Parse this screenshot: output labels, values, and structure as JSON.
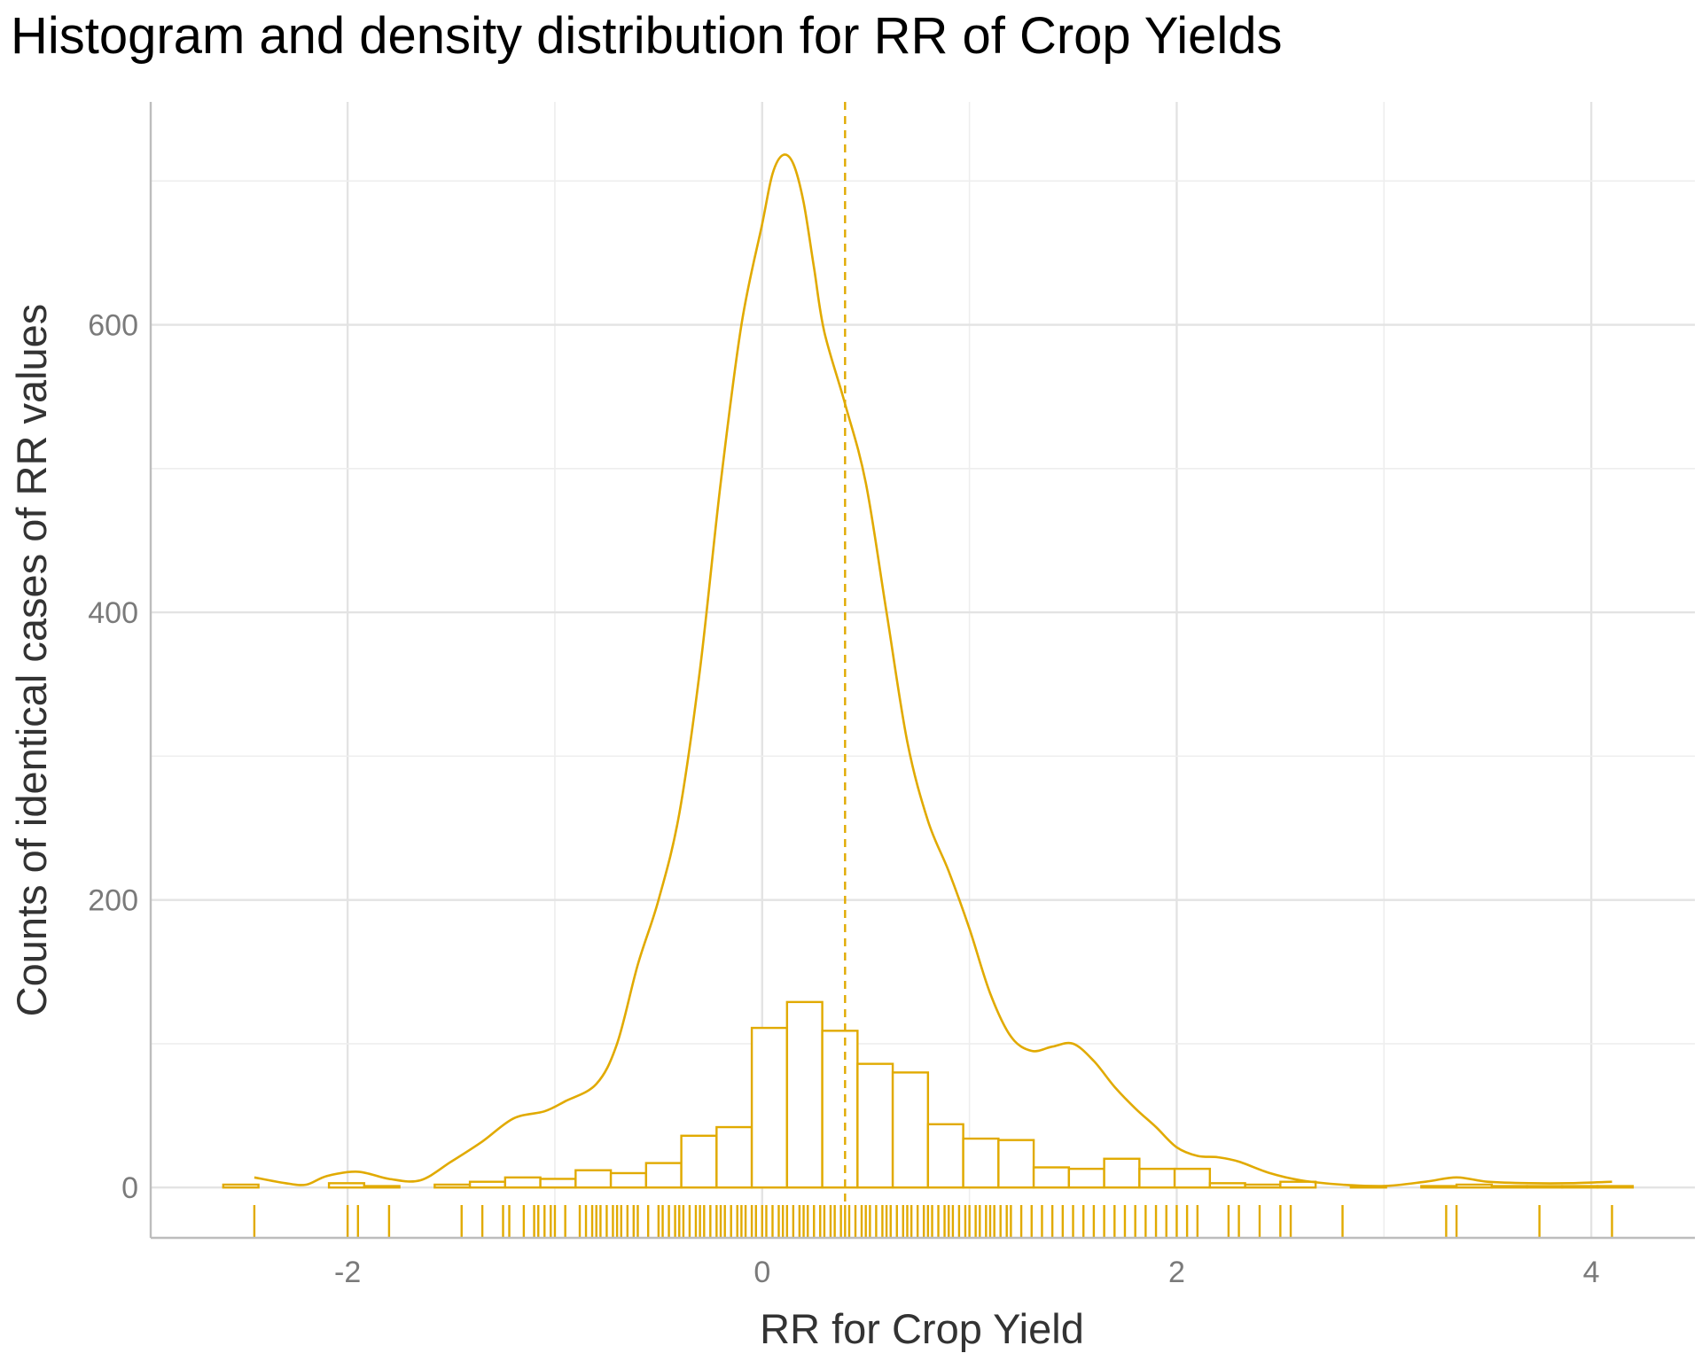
{
  "chart_data": {
    "type": "histogram",
    "title": "Histogram and density distribution for RR of Crop Yields",
    "xlabel": "RR for Crop Yield",
    "ylabel": "Counts of identical cases of RR values",
    "xlim": [
      -2.95,
      4.5
    ],
    "ylim": [
      -35,
      755
    ],
    "x_ticks": [
      -2,
      0,
      2,
      4
    ],
    "x_tick_labels": [
      "-2",
      "0",
      "2",
      "4"
    ],
    "y_ticks": [
      0,
      200,
      400,
      600
    ],
    "y_tick_labels": [
      "0",
      "200",
      "400",
      "600"
    ],
    "grid": true,
    "accent_color": "#E1AA00",
    "histogram": {
      "bins": [
        {
          "x0": -2.6,
          "x1": -2.43,
          "count": 2
        },
        {
          "x0": -2.43,
          "x1": -2.26,
          "count": 0
        },
        {
          "x0": -2.26,
          "x1": -2.09,
          "count": 0
        },
        {
          "x0": -2.09,
          "x1": -1.92,
          "count": 3
        },
        {
          "x0": -1.92,
          "x1": -1.75,
          "count": 1
        },
        {
          "x0": -1.75,
          "x1": -1.58,
          "count": 0
        },
        {
          "x0": -1.58,
          "x1": -1.41,
          "count": 2
        },
        {
          "x0": -1.41,
          "x1": -1.24,
          "count": 4
        },
        {
          "x0": -1.24,
          "x1": -1.07,
          "count": 7
        },
        {
          "x0": -1.07,
          "x1": -0.9,
          "count": 6
        },
        {
          "x0": -0.9,
          "x1": -0.73,
          "count": 12
        },
        {
          "x0": -0.73,
          "x1": -0.56,
          "count": 10
        },
        {
          "x0": -0.56,
          "x1": -0.39,
          "count": 17
        },
        {
          "x0": -0.39,
          "x1": -0.22,
          "count": 36
        },
        {
          "x0": -0.22,
          "x1": -0.05,
          "count": 42
        },
        {
          "x0": -0.05,
          "x1": 0.12,
          "count": 111
        },
        {
          "x0": 0.12,
          "x1": 0.29,
          "count": 129
        },
        {
          "x0": 0.29,
          "x1": 0.46,
          "count": 109
        },
        {
          "x0": 0.46,
          "x1": 0.63,
          "count": 86
        },
        {
          "x0": 0.63,
          "x1": 0.8,
          "count": 80
        },
        {
          "x0": 0.8,
          "x1": 0.97,
          "count": 44
        },
        {
          "x0": 0.97,
          "x1": 1.14,
          "count": 34
        },
        {
          "x0": 1.14,
          "x1": 1.31,
          "count": 33
        },
        {
          "x0": 1.31,
          "x1": 1.48,
          "count": 14
        },
        {
          "x0": 1.48,
          "x1": 1.65,
          "count": 13
        },
        {
          "x0": 1.65,
          "x1": 1.82,
          "count": 20
        },
        {
          "x0": 1.82,
          "x1": 1.99,
          "count": 13
        },
        {
          "x0": 1.99,
          "x1": 2.16,
          "count": 13
        },
        {
          "x0": 2.16,
          "x1": 2.33,
          "count": 3
        },
        {
          "x0": 2.33,
          "x1": 2.5,
          "count": 2
        },
        {
          "x0": 2.5,
          "x1": 2.67,
          "count": 4
        },
        {
          "x0": 2.67,
          "x1": 2.84,
          "count": 0
        },
        {
          "x0": 2.84,
          "x1": 3.01,
          "count": 1
        },
        {
          "x0": 3.01,
          "x1": 3.18,
          "count": 0
        },
        {
          "x0": 3.18,
          "x1": 3.35,
          "count": 1
        },
        {
          "x0": 3.35,
          "x1": 3.52,
          "count": 2
        },
        {
          "x0": 3.52,
          "x1": 3.69,
          "count": 1
        },
        {
          "x0": 3.69,
          "x1": 3.86,
          "count": 1
        },
        {
          "x0": 3.86,
          "x1": 4.03,
          "count": 1
        },
        {
          "x0": 4.03,
          "x1": 4.2,
          "count": 1
        }
      ]
    },
    "density_curve": {
      "x": [
        -2.45,
        -2.3,
        -2.2,
        -2.1,
        -1.95,
        -1.8,
        -1.65,
        -1.5,
        -1.35,
        -1.2,
        -1.05,
        -0.95,
        -0.8,
        -0.7,
        -0.6,
        -0.5,
        -0.4,
        -0.3,
        -0.2,
        -0.1,
        0.0,
        0.05,
        0.1,
        0.15,
        0.2,
        0.25,
        0.3,
        0.4,
        0.5,
        0.6,
        0.7,
        0.8,
        0.9,
        1.0,
        1.1,
        1.2,
        1.3,
        1.4,
        1.5,
        1.6,
        1.7,
        1.8,
        1.9,
        2.0,
        2.1,
        2.2,
        2.3,
        2.45,
        2.6,
        2.8,
        3.0,
        3.2,
        3.35,
        3.5,
        3.7,
        3.9,
        4.1
      ],
      "y": [
        7,
        3,
        2,
        8,
        11,
        6,
        5,
        18,
        32,
        48,
        53,
        60,
        72,
        100,
        155,
        200,
        260,
        360,
        490,
        600,
        670,
        705,
        718,
        712,
        685,
        640,
        595,
        545,
        490,
        400,
        310,
        255,
        220,
        180,
        135,
        105,
        95,
        98,
        100,
        88,
        70,
        55,
        42,
        28,
        22,
        21,
        18,
        10,
        5,
        2,
        1,
        4,
        7,
        4,
        3,
        3,
        4
      ]
    },
    "mean_line_x": 0.4,
    "rug_x": [
      -2.45,
      -2.0,
      -1.95,
      -1.8,
      -1.45,
      -1.35,
      -1.25,
      -1.22,
      -1.15,
      -1.1,
      -1.08,
      -1.05,
      -1.02,
      -1.0,
      -0.95,
      -0.88,
      -0.85,
      -0.82,
      -0.8,
      -0.78,
      -0.75,
      -0.72,
      -0.7,
      -0.68,
      -0.65,
      -0.62,
      -0.6,
      -0.55,
      -0.5,
      -0.48,
      -0.45,
      -0.42,
      -0.4,
      -0.38,
      -0.35,
      -0.32,
      -0.3,
      -0.28,
      -0.25,
      -0.22,
      -0.2,
      -0.18,
      -0.15,
      -0.12,
      -0.1,
      -0.08,
      -0.05,
      -0.03,
      0.0,
      0.02,
      0.05,
      0.08,
      0.1,
      0.12,
      0.15,
      0.18,
      0.2,
      0.22,
      0.25,
      0.28,
      0.3,
      0.33,
      0.35,
      0.38,
      0.4,
      0.42,
      0.45,
      0.48,
      0.5,
      0.52,
      0.55,
      0.58,
      0.6,
      0.62,
      0.65,
      0.68,
      0.7,
      0.72,
      0.75,
      0.78,
      0.8,
      0.82,
      0.85,
      0.88,
      0.9,
      0.92,
      0.95,
      0.98,
      1.0,
      1.03,
      1.05,
      1.08,
      1.1,
      1.12,
      1.15,
      1.18,
      1.2,
      1.25,
      1.3,
      1.35,
      1.4,
      1.45,
      1.5,
      1.55,
      1.6,
      1.65,
      1.7,
      1.75,
      1.8,
      1.85,
      1.9,
      1.95,
      2.0,
      2.05,
      2.1,
      2.25,
      2.3,
      2.4,
      2.5,
      2.55,
      2.8,
      3.3,
      3.35,
      3.75,
      4.1
    ]
  }
}
